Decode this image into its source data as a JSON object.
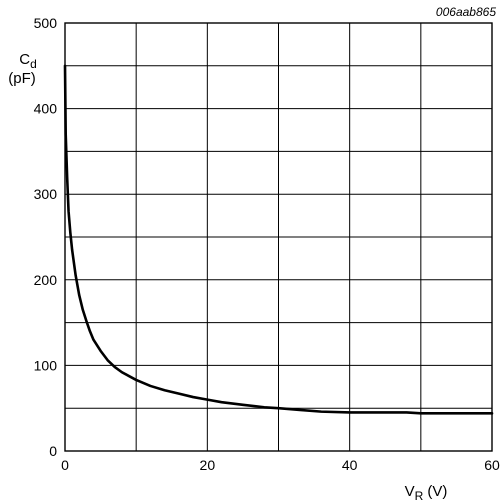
{
  "figure_code": "006aab865",
  "chart_data": {
    "type": "line",
    "xlabel": {
      "main": "V",
      "sub": "R",
      "unit": "(V)"
    },
    "ylabel": {
      "main": "C",
      "sub": "d",
      "unit": "(pF)"
    },
    "xlim": [
      0,
      60
    ],
    "ylim": [
      0,
      500
    ],
    "x_ticks": [
      0,
      20,
      40,
      60
    ],
    "y_ticks": [
      0,
      100,
      200,
      300,
      400,
      500
    ],
    "grid": true,
    "series": [
      {
        "color": "#000000",
        "x": [
          0,
          0.1,
          0.3,
          0.5,
          0.75,
          1,
          1.5,
          2,
          2.5,
          3,
          3.5,
          4,
          5,
          6,
          7,
          8,
          10,
          12,
          14,
          16,
          18,
          20,
          22,
          25,
          28,
          30,
          33,
          36,
          40,
          45,
          48,
          50,
          55,
          60
        ],
        "y": [
          450,
          370,
          320,
          280,
          255,
          235,
          205,
          182,
          165,
          152,
          140,
          130,
          117,
          106,
          98,
          92,
          83,
          76,
          71,
          67,
          63,
          60,
          57,
          54,
          51,
          50,
          48,
          46,
          45,
          45,
          45,
          44,
          44,
          44
        ]
      }
    ]
  }
}
